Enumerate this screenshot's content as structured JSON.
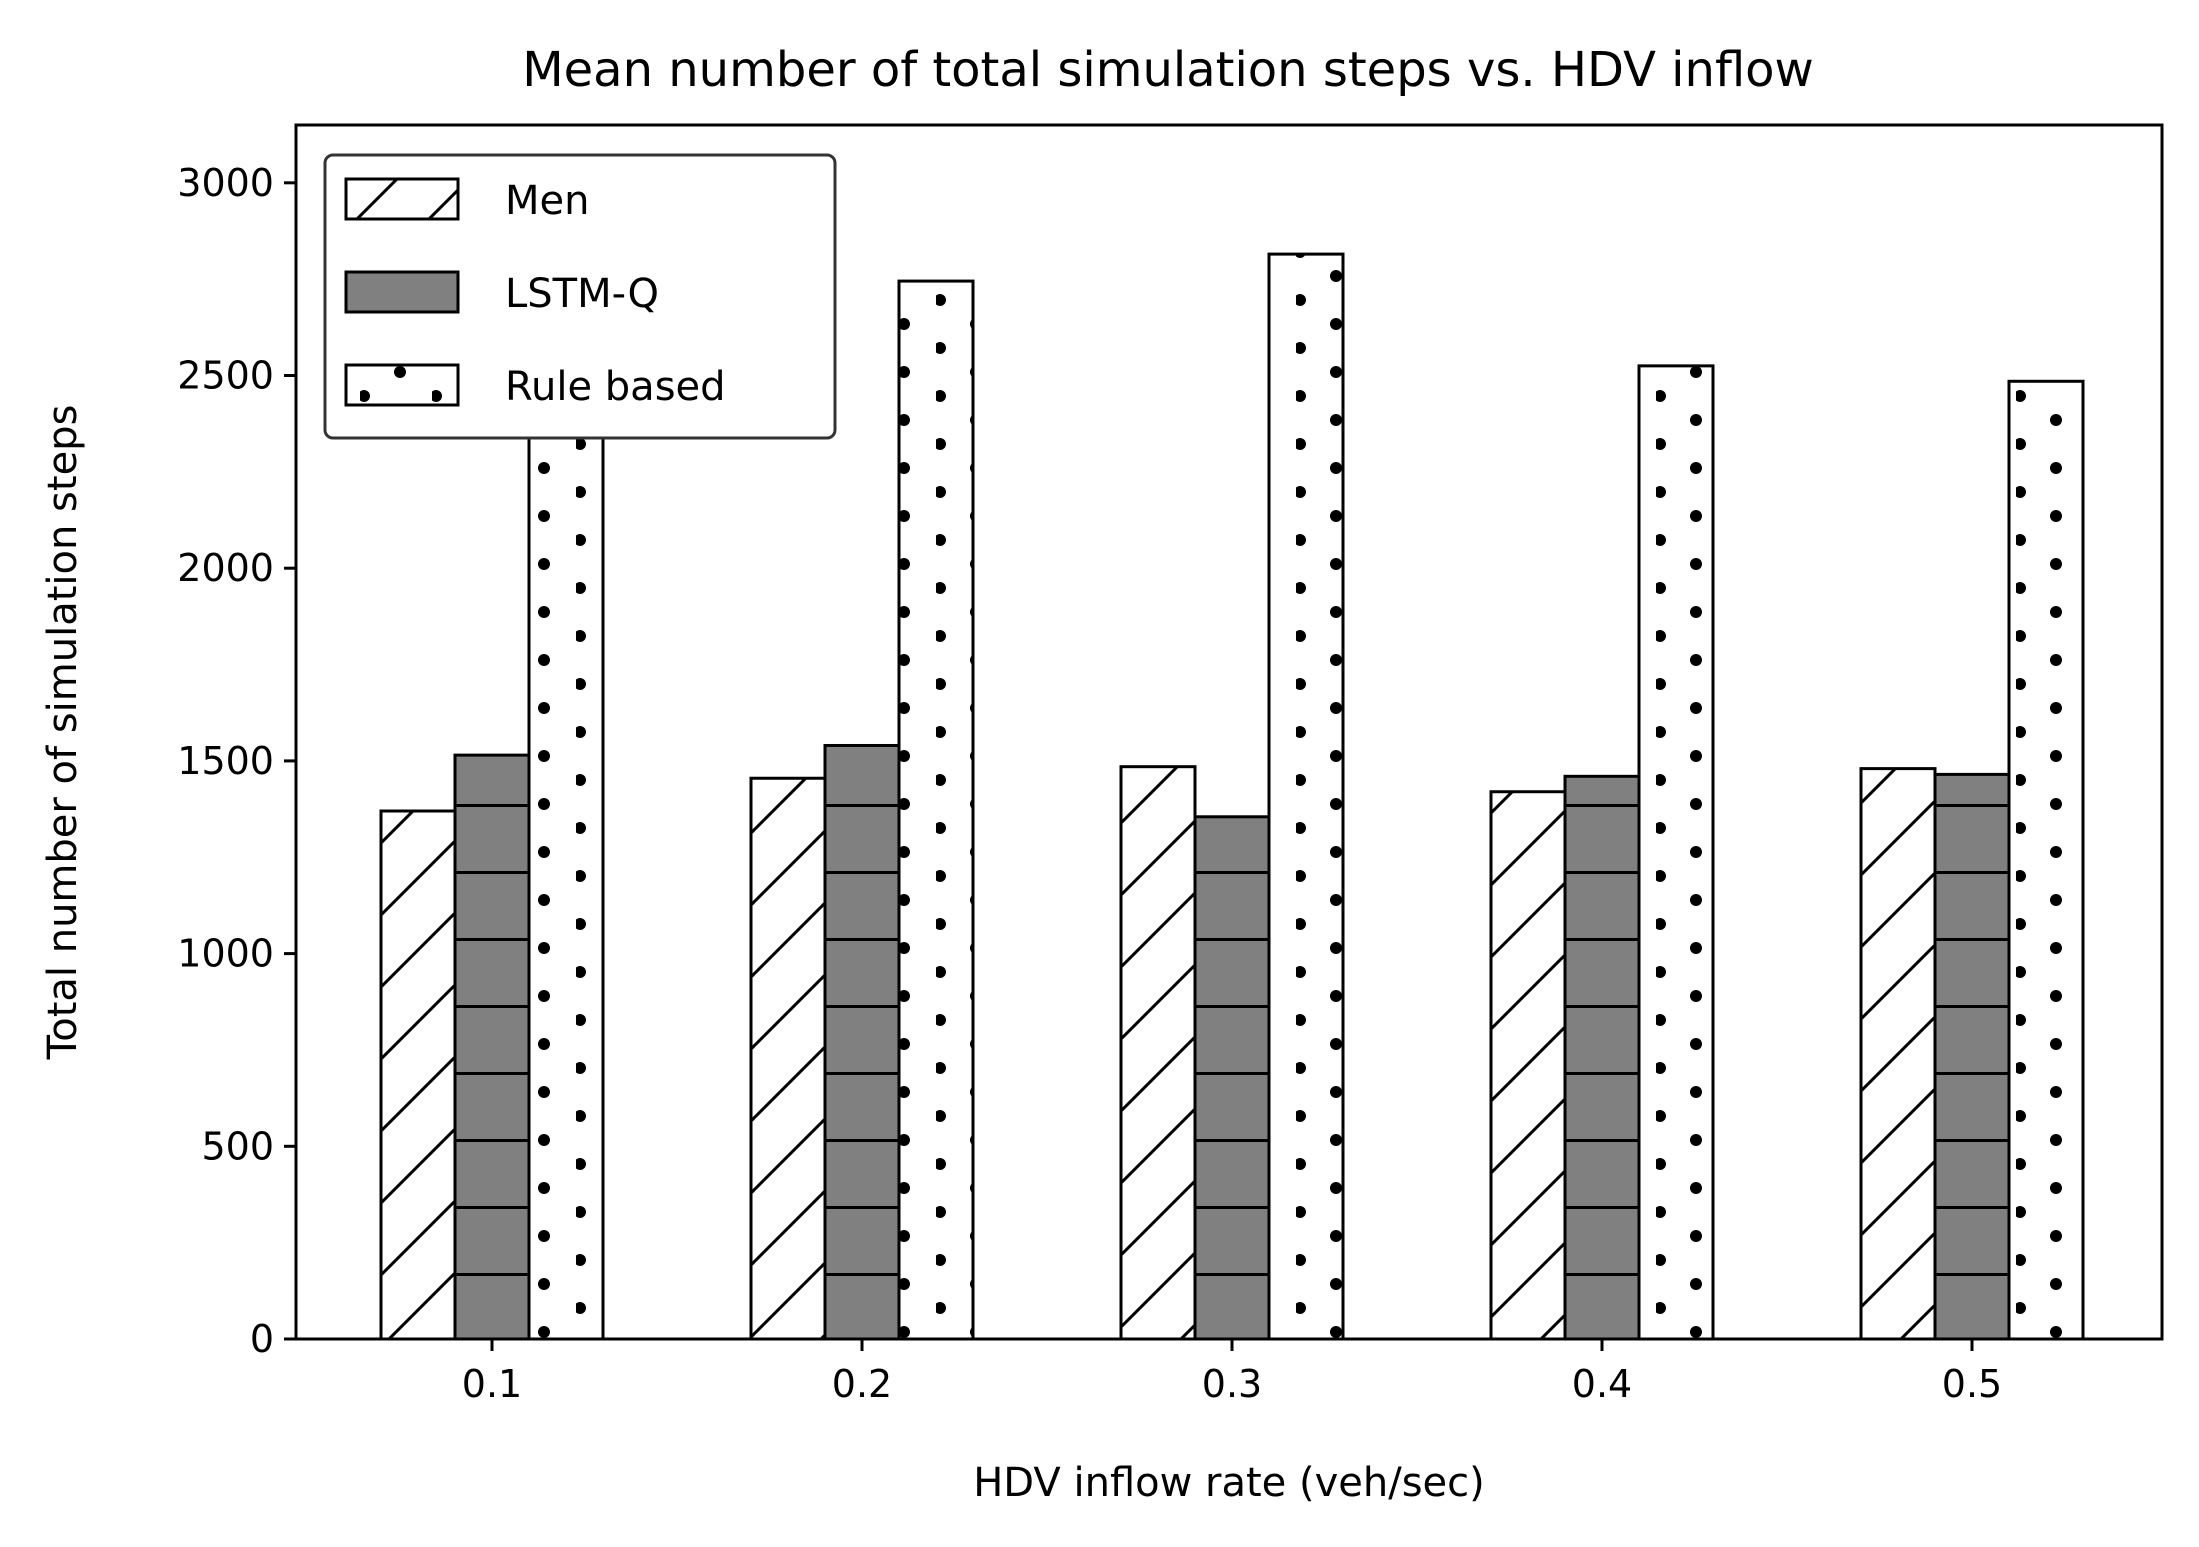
{
  "chart_data": {
    "type": "bar",
    "title": "Mean number of total simulation steps vs. HDV inflow",
    "xlabel": "HDV inflow rate (veh/sec)",
    "ylabel": "Total number of simulation steps",
    "categories": [
      "0.1",
      "0.2",
      "0.3",
      "0.4",
      "0.5"
    ],
    "series": [
      {
        "name": "Men",
        "values": [
          1370,
          1455,
          1485,
          1420,
          1480
        ],
        "color": "#ffffff",
        "hatch": "diagonal"
      },
      {
        "name": "LSTM-Q",
        "values": [
          1515,
          1540,
          1355,
          1460,
          1465
        ],
        "color": "#808080",
        "hatch": "horizontal"
      },
      {
        "name": "Rule based",
        "values": [
          3000,
          2745,
          2815,
          2525,
          2485
        ],
        "color": "#ffffff",
        "hatch": "dots"
      }
    ],
    "ylim": [
      0,
      3150
    ],
    "yticks": [
      "0",
      "500",
      "1000",
      "1500",
      "2000",
      "2500",
      "3000"
    ],
    "grid": false,
    "legend_position": "top-left"
  }
}
